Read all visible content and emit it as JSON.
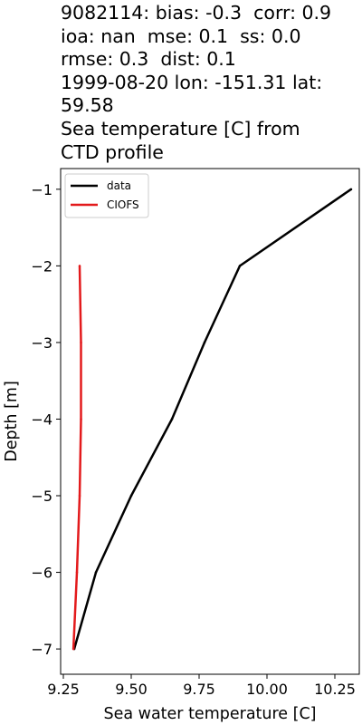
{
  "chart_data": {
    "type": "line",
    "title_lines": [
      "9082114: bias: -0.3  corr: 0.9",
      "ioa: nan  mse: 0.1  ss: 0.0",
      "rmse: 0.3  dist: 0.1",
      "1999-08-20 lon: -151.31 lat:",
      "59.58",
      "Sea temperature [C] from",
      "CTD profile"
    ],
    "xlabel": "Sea water temperature [C]",
    "ylabel": "Depth [m]",
    "xlim": [
      9.24,
      10.34
    ],
    "ylim": [
      -7.33,
      -0.73
    ],
    "xticks": [
      9.25,
      9.5,
      9.75,
      10.0,
      10.25
    ],
    "xtick_labels": [
      "9.25",
      "9.50",
      "9.75",
      "10.00",
      "10.25"
    ],
    "yticks": [
      -1,
      -2,
      -3,
      -4,
      -5,
      -6,
      -7
    ],
    "ytick_labels": [
      "−1",
      "−2",
      "−3",
      "−4",
      "−5",
      "−6",
      "−7"
    ],
    "grid": false,
    "legend_position": "top-left",
    "series": [
      {
        "name": "data",
        "color": "#000000",
        "points": [
          {
            "x": 10.31,
            "y": -1.0
          },
          {
            "x": 9.9,
            "y": -2.0
          },
          {
            "x": 9.77,
            "y": -3.0
          },
          {
            "x": 9.65,
            "y": -4.0
          },
          {
            "x": 9.5,
            "y": -5.0
          },
          {
            "x": 9.37,
            "y": -6.0
          },
          {
            "x": 9.29,
            "y": -7.0
          }
        ]
      },
      {
        "name": "CIOFS",
        "color": "#e31a1c",
        "points": [
          {
            "x": 9.31,
            "y": -2.0
          },
          {
            "x": 9.315,
            "y": -3.0
          },
          {
            "x": 9.315,
            "y": -4.0
          },
          {
            "x": 9.31,
            "y": -5.0
          },
          {
            "x": 9.3,
            "y": -6.0
          },
          {
            "x": 9.287,
            "y": -7.0
          }
        ]
      }
    ]
  }
}
